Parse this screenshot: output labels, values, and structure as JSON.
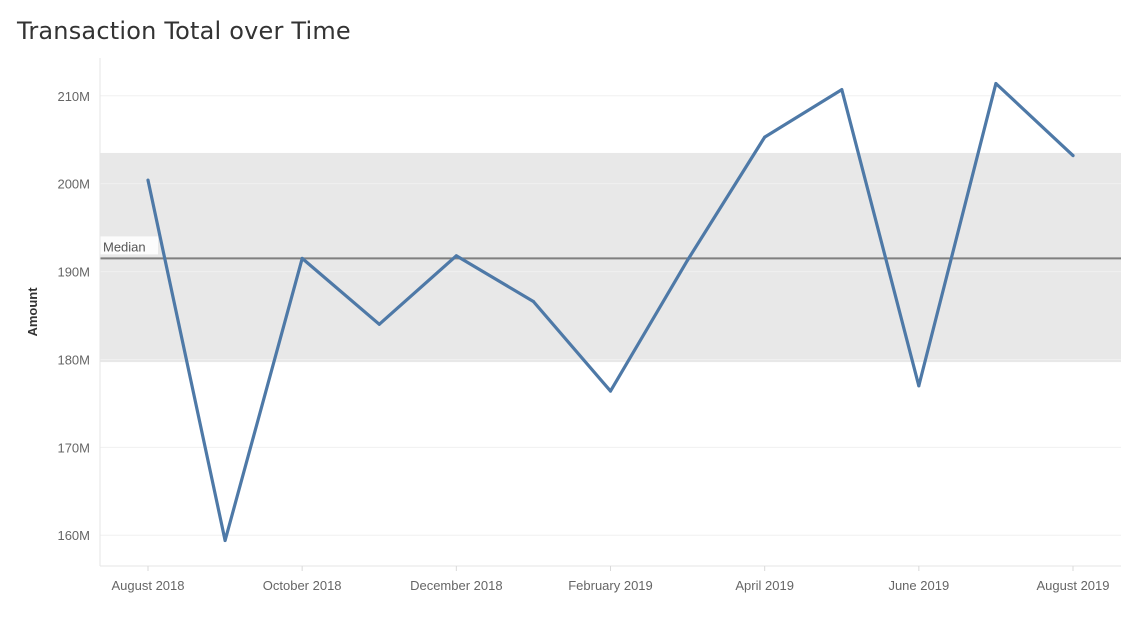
{
  "colors": {
    "line": "#4e79a7",
    "band": "#e8e8e8",
    "median": "#7f7f7f",
    "grid": "#f0f0f0"
  },
  "chart_data": {
    "type": "line",
    "title": "Transaction Total over Time",
    "xlabel": "",
    "ylabel": "Amount",
    "x": [
      "August 2018",
      "September 2018",
      "October 2018",
      "November 2018",
      "December 2018",
      "January 2019",
      "February 2019",
      "March 2019",
      "April 2019",
      "May 2019",
      "June 2019",
      "July 2019",
      "August 2019"
    ],
    "x_tick_labels": [
      "August 2018",
      "October 2018",
      "December 2018",
      "February 2019",
      "April 2019",
      "June 2019",
      "August 2019"
    ],
    "series": [
      {
        "values": [
          200.4,
          159.4,
          191.5,
          184.0,
          191.8,
          186.6,
          176.4,
          191.3,
          205.3,
          210.7,
          177.0,
          211.4,
          203.2
        ]
      }
    ],
    "ylim": [
      156.5,
      214.3
    ],
    "y_ticks": [
      160,
      170,
      180,
      190,
      200,
      210
    ],
    "y_tick_labels": [
      "160M",
      "170M",
      "180M",
      "190M",
      "200M",
      "210M"
    ],
    "reference_line": {
      "label": "Median",
      "value": 191.5
    },
    "reference_band": {
      "from": 179.7,
      "to": 203.5
    },
    "grid": true
  }
}
